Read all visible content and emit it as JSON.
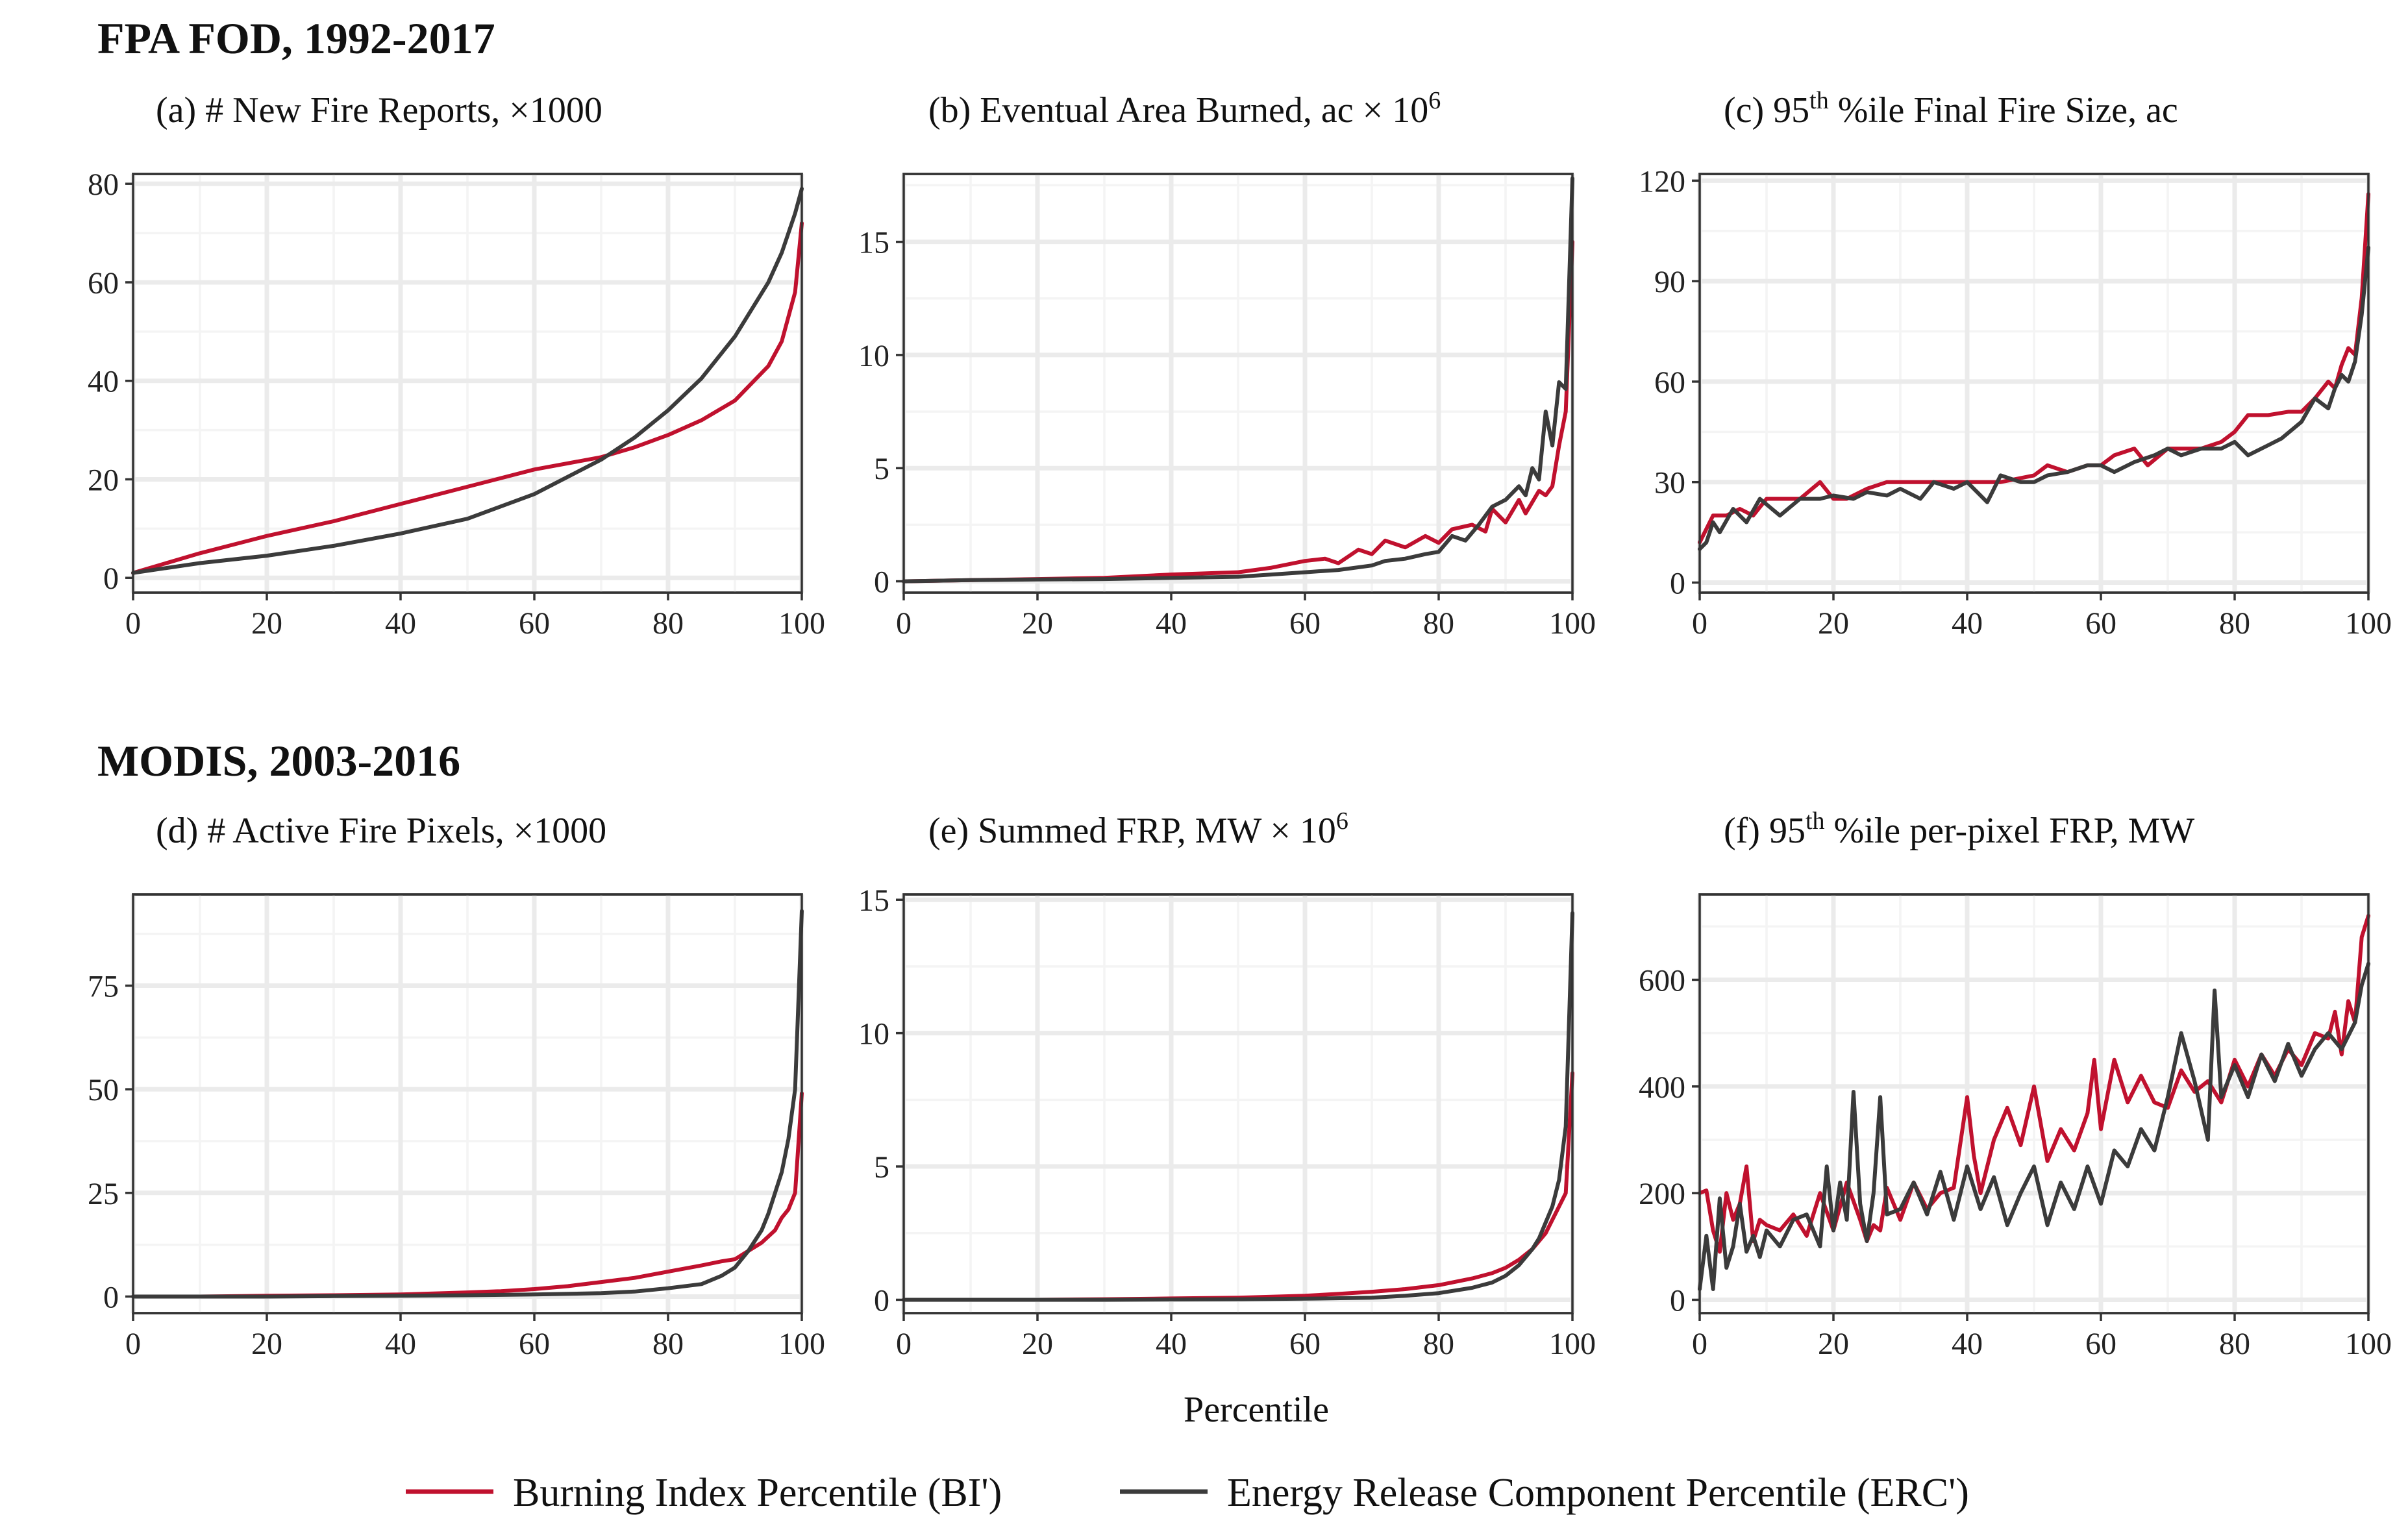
{
  "figure": {
    "group_titles": [
      "FPA FOD, 1992-2017",
      "MODIS, 2003-2016"
    ],
    "xlabel": "Percentile",
    "colors": {
      "bi": "#c0112e",
      "erc": "#3b3b3b"
    },
    "legend": [
      {
        "key": "bi",
        "label": "Burning Index Percentile (BI')"
      },
      {
        "key": "erc",
        "label": "Energy Release Component Percentile (ERC')"
      }
    ]
  },
  "chart_data": [
    {
      "type": "line",
      "id": "a",
      "title": "(a) # New Fire Reports, ×1000",
      "title_parts": [
        "(a) # New Fire Reports, ×1000"
      ],
      "xlabel": "",
      "ylabel": "",
      "xlim": [
        0,
        100
      ],
      "ylim": [
        -3,
        82
      ],
      "xticks": [
        0,
        20,
        40,
        60,
        80,
        100
      ],
      "yticks": [
        0,
        20,
        40,
        60,
        80
      ],
      "series": [
        {
          "key": "bi",
          "name": "Burning Index Percentile (BI')",
          "x": [
            0,
            10,
            20,
            30,
            40,
            50,
            60,
            70,
            75,
            80,
            85,
            90,
            95,
            97,
            99,
            100
          ],
          "y": [
            1,
            5,
            8.5,
            11.5,
            15,
            18.5,
            22,
            24.5,
            26.5,
            29,
            32,
            36,
            43,
            48,
            58,
            72
          ]
        },
        {
          "key": "erc",
          "name": "Energy Release Component Percentile (ERC')",
          "x": [
            0,
            10,
            20,
            30,
            40,
            50,
            60,
            70,
            75,
            80,
            85,
            90,
            95,
            97,
            99,
            100
          ],
          "y": [
            1,
            3,
            4.5,
            6.5,
            9,
            12,
            17,
            24,
            28.5,
            34,
            40.5,
            49,
            60,
            66,
            74,
            79
          ]
        }
      ]
    },
    {
      "type": "line",
      "id": "b",
      "title": "(b) Eventual Area Burned, ac × 10^6",
      "title_parts": [
        "(b) Eventual Area Burned, ac × 10",
        "6",
        ""
      ],
      "xlabel": "",
      "ylabel": "",
      "xlim": [
        0,
        100
      ],
      "ylim": [
        -0.5,
        18
      ],
      "xticks": [
        0,
        20,
        40,
        60,
        80,
        100
      ],
      "yticks": [
        0,
        5,
        10,
        15
      ],
      "series": [
        {
          "key": "bi",
          "name": "Burning Index Percentile (BI')",
          "x": [
            0,
            10,
            20,
            30,
            40,
            50,
            55,
            60,
            63,
            65,
            68,
            70,
            72,
            75,
            78,
            80,
            82,
            85,
            87,
            88,
            90,
            92,
            93,
            95,
            96,
            97,
            98,
            99,
            100
          ],
          "y": [
            0,
            0.05,
            0.1,
            0.15,
            0.3,
            0.4,
            0.6,
            0.9,
            1.0,
            0.8,
            1.4,
            1.2,
            1.8,
            1.5,
            2.0,
            1.7,
            2.3,
            2.5,
            2.2,
            3.2,
            2.6,
            3.6,
            3.0,
            4.0,
            3.8,
            4.2,
            6.0,
            7.5,
            15
          ]
        },
        {
          "key": "erc",
          "name": "Energy Release Component Percentile (ERC')",
          "x": [
            0,
            10,
            20,
            30,
            40,
            50,
            55,
            60,
            65,
            70,
            72,
            75,
            78,
            80,
            82,
            84,
            86,
            88,
            90,
            92,
            93,
            94,
            95,
            96,
            97,
            98,
            99,
            100
          ],
          "y": [
            0,
            0.05,
            0.08,
            0.1,
            0.15,
            0.2,
            0.3,
            0.4,
            0.5,
            0.7,
            0.9,
            1.0,
            1.2,
            1.3,
            2.0,
            1.8,
            2.5,
            3.3,
            3.6,
            4.2,
            3.8,
            5.0,
            4.5,
            7.5,
            6.0,
            8.8,
            8.5,
            17.8
          ]
        }
      ]
    },
    {
      "type": "line",
      "id": "c",
      "title": "(c) 95th %ile Final Fire Size, ac",
      "title_parts": [
        "(c) 95",
        "th",
        " %ile Final Fire Size, ac"
      ],
      "xlabel": "",
      "ylabel": "",
      "xlim": [
        0,
        100
      ],
      "ylim": [
        -3,
        122
      ],
      "xticks": [
        0,
        20,
        40,
        60,
        80,
        100
      ],
      "yticks": [
        0,
        30,
        60,
        90,
        120
      ],
      "series": [
        {
          "key": "bi",
          "name": "Burning Index Percentile (BI')",
          "x": [
            0,
            2,
            4,
            6,
            8,
            10,
            12,
            15,
            18,
            20,
            22,
            25,
            28,
            30,
            35,
            40,
            45,
            50,
            52,
            55,
            58,
            60,
            62,
            65,
            67,
            70,
            72,
            75,
            78,
            80,
            82,
            85,
            88,
            90,
            92,
            94,
            95,
            96,
            97,
            98,
            99,
            100
          ],
          "y": [
            12,
            20,
            20,
            22,
            20,
            25,
            25,
            25,
            30,
            25,
            25,
            28,
            30,
            30,
            30,
            30,
            30,
            32,
            35,
            33,
            35,
            35,
            38,
            40,
            35,
            40,
            40,
            40,
            42,
            45,
            50,
            50,
            51,
            51,
            55,
            60,
            58,
            65,
            70,
            68,
            85,
            116
          ]
        },
        {
          "key": "erc",
          "name": "Energy Release Component Percentile (ERC')",
          "x": [
            0,
            1,
            2,
            3,
            5,
            7,
            9,
            12,
            15,
            18,
            20,
            23,
            25,
            28,
            30,
            33,
            35,
            38,
            40,
            43,
            45,
            48,
            50,
            52,
            55,
            58,
            60,
            62,
            65,
            68,
            70,
            72,
            75,
            78,
            80,
            82,
            85,
            87,
            90,
            92,
            94,
            95,
            96,
            97,
            98,
            99,
            100
          ],
          "y": [
            10,
            12,
            18,
            15,
            22,
            18,
            25,
            20,
            25,
            25,
            26,
            25,
            27,
            26,
            28,
            25,
            30,
            28,
            30,
            24,
            32,
            30,
            30,
            32,
            33,
            35,
            35,
            33,
            36,
            38,
            40,
            38,
            40,
            40,
            42,
            38,
            41,
            43,
            48,
            55,
            52,
            58,
            62,
            60,
            66,
            80,
            100
          ]
        }
      ]
    },
    {
      "type": "line",
      "id": "d",
      "title": "(d) # Active Fire Pixels, ×1000",
      "title_parts": [
        "(d) # Active Fire Pixels, ×1000"
      ],
      "xlabel": "",
      "ylabel": "",
      "xlim": [
        0,
        100
      ],
      "ylim": [
        -4,
        97
      ],
      "xticks": [
        0,
        20,
        40,
        60,
        80,
        100
      ],
      "yticks": [
        0,
        25,
        50,
        75
      ],
      "series": [
        {
          "key": "bi",
          "name": "Burning Index Percentile (BI')",
          "x": [
            0,
            10,
            20,
            30,
            40,
            50,
            55,
            60,
            65,
            70,
            75,
            80,
            85,
            88,
            90,
            92,
            94,
            96,
            97,
            98,
            99,
            100
          ],
          "y": [
            0,
            0,
            0.2,
            0.3,
            0.5,
            1,
            1.3,
            1.8,
            2.5,
            3.5,
            4.5,
            6,
            7.5,
            8.5,
            9,
            11,
            13,
            16,
            19,
            21,
            25,
            49
          ]
        },
        {
          "key": "erc",
          "name": "Energy Release Component Percentile (ERC')",
          "x": [
            0,
            10,
            20,
            30,
            40,
            50,
            60,
            70,
            75,
            80,
            85,
            88,
            90,
            92,
            94,
            95,
            96,
            97,
            98,
            99,
            100
          ],
          "y": [
            0,
            0,
            0,
            0.1,
            0.2,
            0.3,
            0.5,
            0.8,
            1.2,
            2,
            3,
            5,
            7,
            11,
            16,
            20,
            25,
            30,
            38,
            50,
            93
          ]
        }
      ]
    },
    {
      "type": "line",
      "id": "e",
      "title": "(e) Summed FRP, MW × 10^6",
      "title_parts": [
        "(e) Summed FRP, MW × 10",
        "6",
        ""
      ],
      "xlabel": "",
      "ylabel": "",
      "xlim": [
        0,
        100
      ],
      "ylim": [
        -0.5,
        15.2
      ],
      "xticks": [
        0,
        20,
        40,
        60,
        80,
        100
      ],
      "yticks": [
        0,
        5,
        10,
        15
      ],
      "series": [
        {
          "key": "bi",
          "name": "Burning Index Percentile (BI')",
          "x": [
            0,
            10,
            20,
            30,
            40,
            50,
            60,
            65,
            70,
            75,
            80,
            85,
            88,
            90,
            92,
            94,
            96,
            97,
            98,
            99,
            100
          ],
          "y": [
            0,
            0,
            0,
            0.02,
            0.05,
            0.08,
            0.15,
            0.22,
            0.3,
            0.4,
            0.55,
            0.8,
            1.0,
            1.2,
            1.5,
            1.9,
            2.5,
            3.0,
            3.5,
            4.0,
            8.5
          ]
        },
        {
          "key": "erc",
          "name": "Energy Release Component Percentile (ERC')",
          "x": [
            0,
            10,
            20,
            30,
            40,
            50,
            60,
            70,
            75,
            80,
            85,
            88,
            90,
            92,
            94,
            95,
            96,
            97,
            98,
            99,
            100
          ],
          "y": [
            0,
            0,
            0,
            0,
            0.01,
            0.02,
            0.04,
            0.08,
            0.15,
            0.25,
            0.45,
            0.65,
            0.9,
            1.3,
            1.9,
            2.3,
            2.9,
            3.5,
            4.5,
            6.5,
            14.5
          ]
        }
      ]
    },
    {
      "type": "line",
      "id": "f",
      "title": "(f) 95th %ile per-pixel FRP, MW",
      "title_parts": [
        "(f) 95",
        "th",
        " %ile per-pixel FRP, MW"
      ],
      "xlabel": "",
      "ylabel": "",
      "xlim": [
        0,
        100
      ],
      "ylim": [
        -25,
        760
      ],
      "xticks": [
        0,
        20,
        40,
        60,
        80,
        100
      ],
      "yticks": [
        0,
        200,
        400,
        600
      ],
      "series": [
        {
          "key": "bi",
          "name": "Burning Index Percentile (BI')",
          "x": [
            0,
            1,
            2,
            3,
            4,
            5,
            6,
            7,
            8,
            9,
            10,
            12,
            14,
            16,
            18,
            20,
            22,
            24,
            25,
            26,
            27,
            28,
            30,
            32,
            34,
            36,
            38,
            40,
            41,
            42,
            44,
            46,
            48,
            50,
            52,
            54,
            56,
            58,
            59,
            60,
            62,
            64,
            66,
            68,
            70,
            72,
            74,
            76,
            78,
            80,
            82,
            84,
            86,
            88,
            90,
            92,
            94,
            95,
            96,
            97,
            98,
            99,
            100
          ],
          "y": [
            200,
            205,
            130,
            90,
            200,
            150,
            180,
            250,
            110,
            150,
            140,
            130,
            160,
            120,
            200,
            130,
            220,
            150,
            110,
            140,
            130,
            210,
            150,
            220,
            170,
            200,
            210,
            380,
            270,
            200,
            300,
            360,
            290,
            400,
            260,
            320,
            280,
            350,
            450,
            320,
            450,
            370,
            420,
            370,
            360,
            430,
            390,
            410,
            370,
            450,
            400,
            460,
            420,
            470,
            440,
            500,
            490,
            540,
            460,
            560,
            520,
            680,
            720
          ]
        },
        {
          "key": "erc",
          "name": "Energy Release Component Percentile (ERC')",
          "x": [
            0,
            1,
            2,
            3,
            4,
            5,
            6,
            7,
            8,
            9,
            10,
            12,
            14,
            16,
            18,
            19,
            20,
            21,
            22,
            23,
            24,
            25,
            26,
            27,
            28,
            30,
            32,
            34,
            36,
            38,
            40,
            42,
            44,
            46,
            48,
            50,
            52,
            54,
            56,
            58,
            60,
            62,
            64,
            66,
            68,
            70,
            72,
            74,
            76,
            77,
            78,
            80,
            82,
            84,
            86,
            88,
            90,
            92,
            94,
            96,
            98,
            99,
            100
          ],
          "y": [
            20,
            120,
            20,
            190,
            60,
            100,
            180,
            90,
            120,
            80,
            130,
            100,
            150,
            160,
            100,
            250,
            130,
            220,
            150,
            390,
            180,
            110,
            200,
            380,
            160,
            170,
            220,
            160,
            240,
            150,
            250,
            170,
            230,
            140,
            200,
            250,
            140,
            220,
            170,
            250,
            180,
            280,
            250,
            320,
            280,
            380,
            500,
            410,
            300,
            580,
            380,
            440,
            380,
            460,
            410,
            480,
            420,
            470,
            500,
            470,
            520,
            590,
            630
          ]
        }
      ]
    }
  ]
}
